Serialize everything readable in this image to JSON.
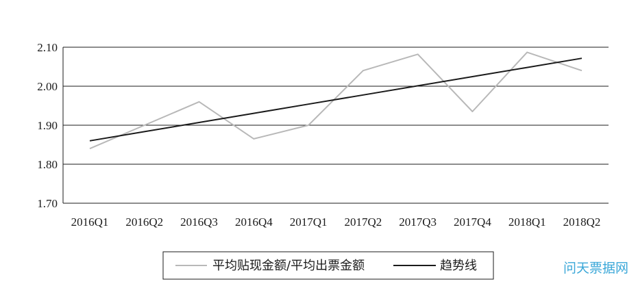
{
  "chart_data": {
    "type": "line",
    "categories": [
      "2016Q1",
      "2016Q2",
      "2016Q3",
      "2016Q4",
      "2017Q1",
      "2017Q2",
      "2017Q3",
      "2017Q4",
      "2018Q1",
      "2018Q2"
    ],
    "series": [
      {
        "name": "平均贴现金额/平均出票金额",
        "color": "#b8b8b8",
        "values": [
          1.84,
          1.9,
          1.96,
          1.865,
          1.9,
          2.04,
          2.082,
          1.935,
          2.087,
          2.04
        ]
      },
      {
        "name": "趋势线",
        "color": "#1a1a1a",
        "values": [
          1.86,
          1.8835,
          1.907,
          1.9305,
          1.954,
          1.9775,
          2.001,
          2.0245,
          2.048,
          2.0715
        ]
      }
    ],
    "y_ticks": [
      "1.70",
      "1.80",
      "1.90",
      "2.00",
      "2.10"
    ],
    "ylim": [
      1.7,
      2.1
    ],
    "grid": true,
    "legend_position": "bottom"
  },
  "watermark": "问天票据网"
}
